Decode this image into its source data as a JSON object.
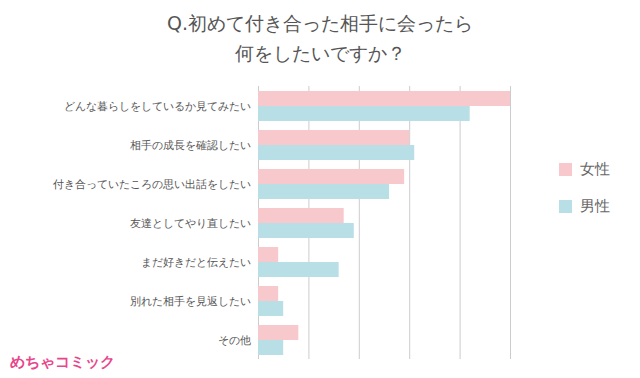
{
  "chart_data": {
    "type": "bar",
    "orientation": "horizontal",
    "title": "Q.初めて付き合った相手に会ったら\n何をしたいですか？",
    "categories": [
      "どんな暮らしをしているか見てみたい",
      "相手の成長を確認したい",
      "付き合っていたころの思い出話をしたい",
      "友達としてやり直したい",
      "まだ好きだと伝えたい",
      "別れた相手を見返したい",
      "その他"
    ],
    "series": [
      {
        "name": "女性",
        "color": "#f7c8cc",
        "values": [
          50,
          30,
          29,
          17,
          4,
          4,
          8
        ]
      },
      {
        "name": "男性",
        "color": "#b8dee6",
        "values": [
          42,
          31,
          26,
          19,
          16,
          5,
          5
        ]
      }
    ],
    "xlim": [
      0,
      50
    ],
    "xticks": [
      0,
      10,
      20,
      30,
      40,
      50
    ],
    "grid": true,
    "tick_labels": "y",
    "legend": "right",
    "annotations": [
      "めちゃコミック"
    ]
  }
}
